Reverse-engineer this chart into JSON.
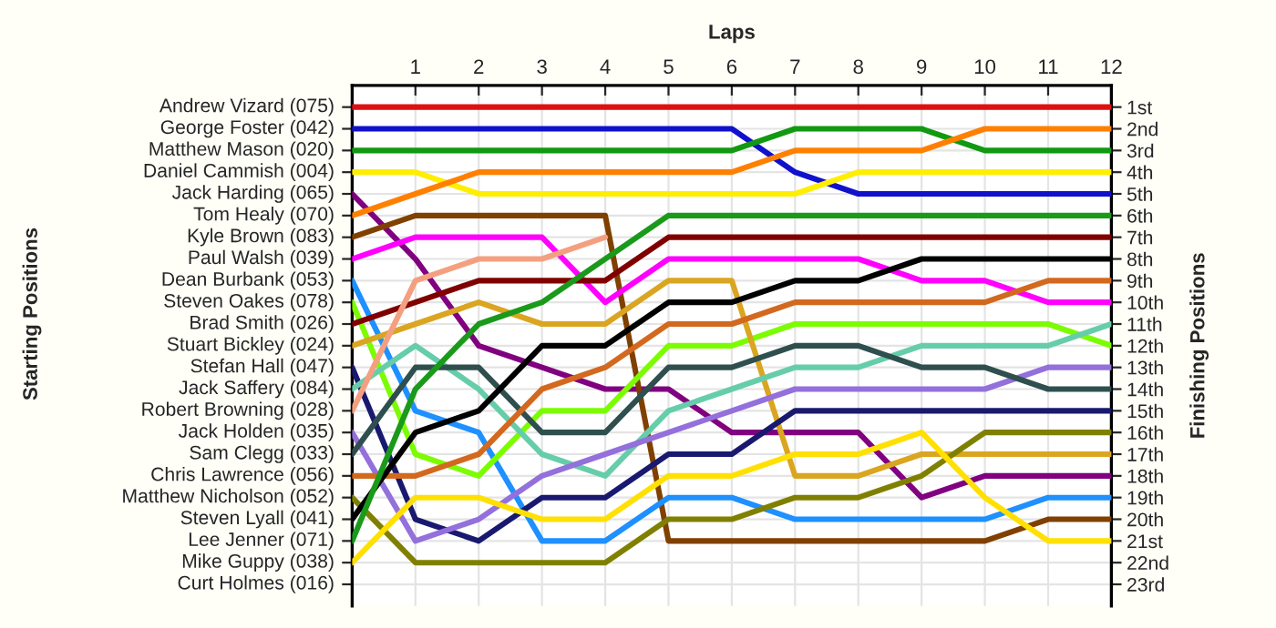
{
  "chart_data": {
    "type": "line",
    "xlabel": "Laps",
    "ylabel": "Finishing Positions",
    "annotations": [
      "Starting Positions",
      "Andrew Vizard (075)",
      "George Foster (042)",
      "Matthew Mason (020)",
      "Daniel Cammish (004)",
      "Jack Harding (065)",
      "Tom Healy (070)",
      "Kyle Brown (083)",
      "Paul Walsh (039)",
      "Dean Burbank (053)",
      "Steven Oakes (078)",
      "Brad Smith (026)",
      "Stuart Bickley (024)",
      "Stefan Hall (047)",
      "Jack Saffery (084)",
      "Robert Browning (028)",
      "Jack Holden (035)",
      "Sam Clegg (033)",
      "Chris Lawrence (056)",
      "Matthew Nicholson (052)",
      "Steven Lyall (041)",
      "Lee Jenner (071)",
      "Mike Guppy (038)",
      "Curt Holmes (016)"
    ],
    "x": [
      0,
      1,
      2,
      3,
      4,
      5,
      6,
      7,
      8,
      9,
      10,
      11,
      12
    ],
    "xlim": [
      0,
      12
    ],
    "xticks": [
      1,
      2,
      3,
      4,
      5,
      6,
      7,
      8,
      9,
      10,
      11,
      12
    ],
    "ylim": [
      24,
      0
    ],
    "yticks": [
      {
        "value": 1,
        "label": "1st"
      },
      {
        "value": 2,
        "label": "2nd"
      },
      {
        "value": 3,
        "label": "3rd"
      },
      {
        "value": 4,
        "label": "4th"
      },
      {
        "value": 5,
        "label": "5th"
      },
      {
        "value": 6,
        "label": "6th"
      },
      {
        "value": 7,
        "label": "7th"
      },
      {
        "value": 8,
        "label": "8th"
      },
      {
        "value": 9,
        "label": "9th"
      },
      {
        "value": 10,
        "label": "10th"
      },
      {
        "value": 11,
        "label": "11th"
      },
      {
        "value": 12,
        "label": "12th"
      },
      {
        "value": 13,
        "label": "13th"
      },
      {
        "value": 14,
        "label": "14th"
      },
      {
        "value": 15,
        "label": "15th"
      },
      {
        "value": 16,
        "label": "16th"
      },
      {
        "value": 17,
        "label": "17th"
      },
      {
        "value": 18,
        "label": "18th"
      },
      {
        "value": 19,
        "label": "19th"
      },
      {
        "value": 20,
        "label": "20th"
      },
      {
        "value": 21,
        "label": "21st"
      },
      {
        "value": 22,
        "label": "22nd"
      },
      {
        "value": 23,
        "label": "23rd"
      }
    ],
    "grid": true,
    "legend": false,
    "marker": "none",
    "line_style": "solid",
    "series": [
      {
        "color": "#dd1111",
        "values": [
          1,
          1,
          1,
          1,
          1,
          1,
          1,
          1,
          1,
          1,
          1,
          1,
          1
        ]
      },
      {
        "color": "#1111cc",
        "values": [
          2,
          2,
          2,
          2,
          2,
          2,
          2,
          4,
          5,
          5,
          5,
          5,
          5
        ]
      },
      {
        "color": "#119911",
        "values": [
          3,
          3,
          3,
          3,
          3,
          3,
          3,
          2,
          2,
          2,
          3,
          3,
          3
        ]
      },
      {
        "color": "#ffee00",
        "values": [
          4,
          4,
          5,
          5,
          5,
          5,
          5,
          5,
          4,
          4,
          4,
          4,
          4
        ]
      },
      {
        "color": "#800080",
        "values": [
          5,
          8,
          12,
          13,
          14,
          14,
          16,
          16,
          16,
          19,
          18,
          18,
          18
        ]
      },
      {
        "color": "#ff8000",
        "values": [
          6,
          5,
          4,
          4,
          4,
          4,
          4,
          3,
          3,
          3,
          2,
          2,
          2
        ]
      },
      {
        "color": "#804000",
        "values": [
          7,
          6,
          6,
          6,
          6,
          21,
          21,
          21,
          21,
          21,
          21,
          20,
          20
        ]
      },
      {
        "color": "#ff00ff",
        "values": [
          8,
          7,
          7,
          7,
          10,
          8,
          8,
          8,
          8,
          9,
          9,
          10,
          10
        ]
      },
      {
        "color": "#1e90ff",
        "values": [
          9,
          15,
          16,
          21,
          21,
          19,
          19,
          20,
          20,
          20,
          20,
          19,
          19
        ]
      },
      {
        "color": "#7cfc00",
        "values": [
          10,
          17,
          18,
          15,
          15,
          12,
          12,
          11,
          11,
          11,
          11,
          11,
          12
        ]
      },
      {
        "color": "#800000",
        "values": [
          11,
          10,
          9,
          9,
          9,
          7,
          7,
          7,
          7,
          7,
          7,
          7,
          7
        ]
      },
      {
        "color": "#daa520",
        "values": [
          12,
          11,
          10,
          11,
          11,
          9,
          9,
          18,
          18,
          17,
          17,
          17,
          17
        ]
      },
      {
        "color": "#191970",
        "values": [
          13,
          20,
          21,
          19,
          19,
          17,
          17,
          15,
          15,
          15,
          15,
          15,
          15
        ]
      },
      {
        "color": "#66cdaa",
        "values": [
          14,
          12,
          14,
          17,
          18,
          15,
          14,
          13,
          13,
          12,
          12,
          12,
          11
        ]
      },
      {
        "color": "#f4a080",
        "values": [
          15,
          9,
          8,
          8,
          7,
          null,
          null,
          null,
          null,
          null,
          null,
          null,
          null
        ]
      },
      {
        "color": "#9370db",
        "values": [
          16,
          21,
          20,
          18,
          17,
          16,
          15,
          14,
          14,
          14,
          14,
          13,
          13
        ]
      },
      {
        "color": "#2f4f4f",
        "values": [
          17,
          13,
          13,
          16,
          16,
          13,
          13,
          12,
          12,
          13,
          13,
          14,
          14
        ]
      },
      {
        "color": "#d2691e",
        "values": [
          18,
          18,
          17,
          14,
          13,
          11,
          11,
          10,
          10,
          10,
          10,
          9,
          9
        ]
      },
      {
        "color": "#808000",
        "values": [
          19,
          22,
          22,
          22,
          22,
          20,
          20,
          19,
          19,
          18,
          16,
          16,
          16
        ]
      },
      {
        "color": "#000000",
        "values": [
          20,
          16,
          15,
          12,
          12,
          10,
          10,
          9,
          9,
          8,
          8,
          8,
          8
        ]
      },
      {
        "color": "#1a9a1a",
        "values": [
          21,
          14,
          11,
          10,
          8,
          6,
          6,
          6,
          6,
          6,
          6,
          6,
          6
        ]
      },
      {
        "color": "#ffe000",
        "values": [
          22,
          19,
          19,
          20,
          20,
          18,
          18,
          17,
          17,
          16,
          19,
          21,
          21
        ]
      }
    ]
  }
}
